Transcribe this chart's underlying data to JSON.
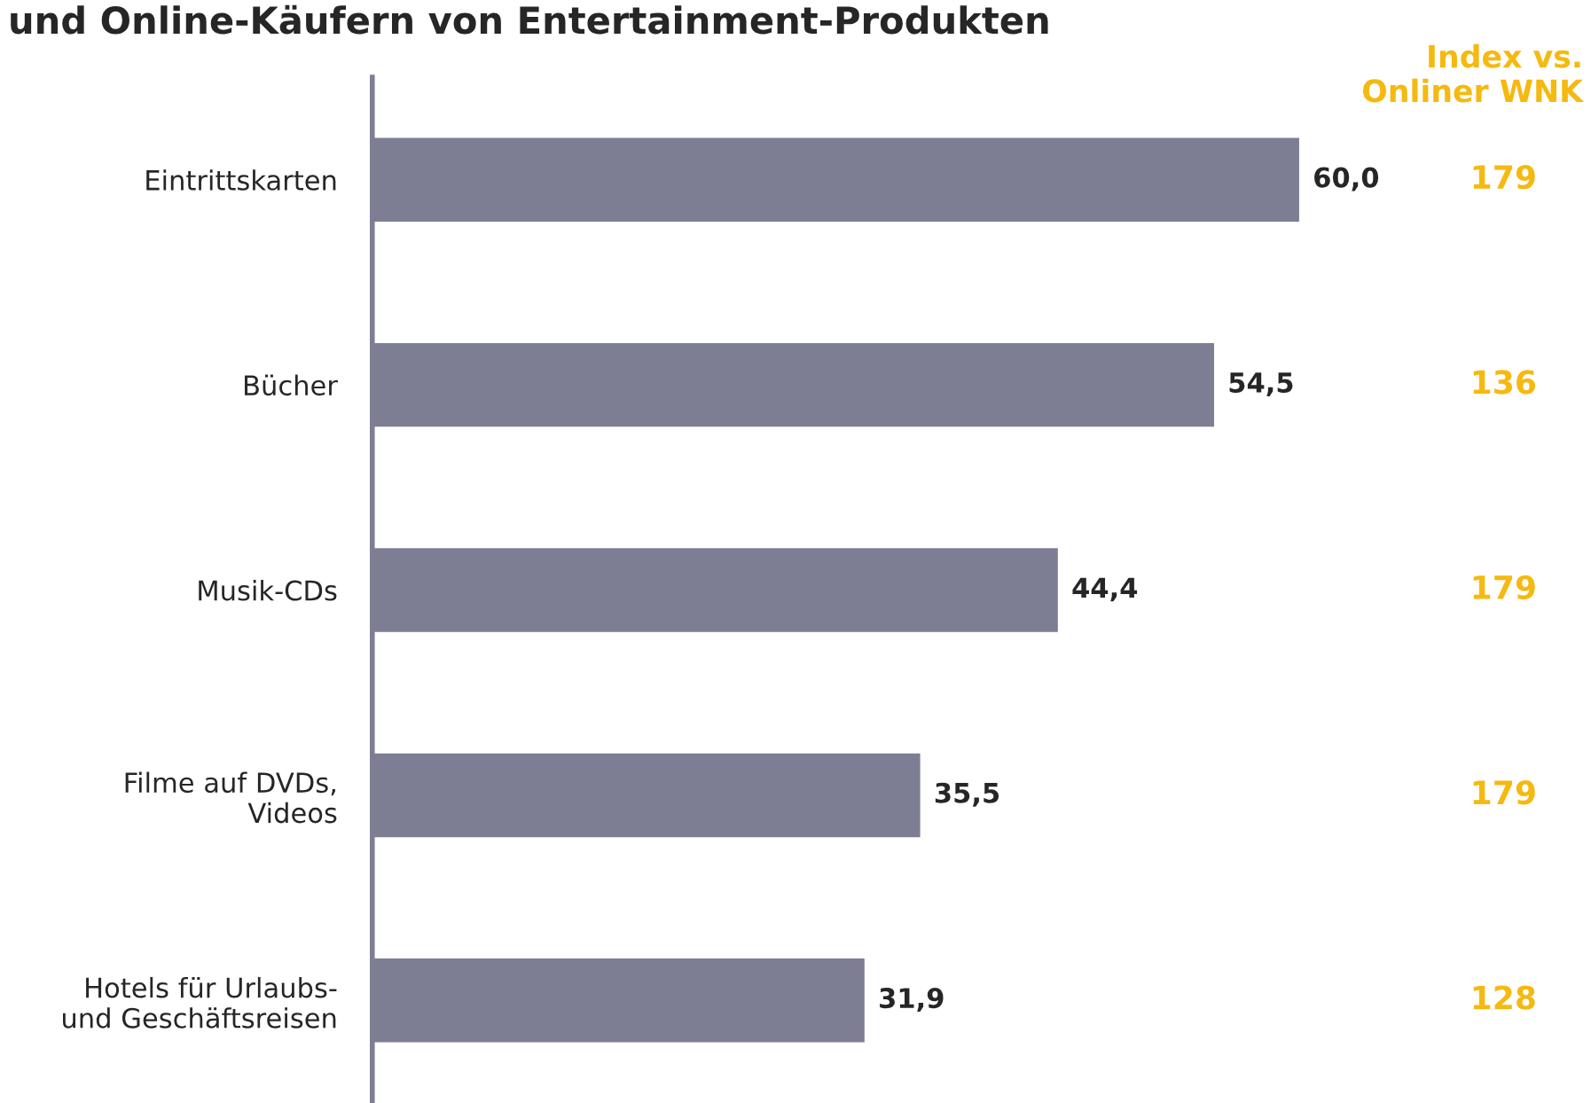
{
  "chart_data": {
    "type": "bar",
    "orientation": "horizontal",
    "title": "und Online-Käufern von Entertainment-Produkten",
    "categories": [
      "Eintrittskarten",
      "Bücher",
      "Musik-CDs",
      "Filme auf DVDs,\nVideos",
      "Hotels für Urlaubs-\nund Geschäftsreisen"
    ],
    "values": [
      60.0,
      54.5,
      44.4,
      35.5,
      31.9
    ],
    "value_labels": [
      "60,0",
      "54,5",
      "44,4",
      "35,5",
      "31,9"
    ],
    "color": "#7d7d93",
    "annotations": [
      "Index vs.\nOnliner WNK",
      "179",
      "136",
      "179",
      "179",
      "128"
    ]
  }
}
